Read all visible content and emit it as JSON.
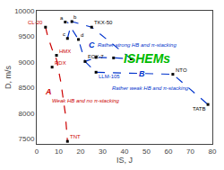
{
  "chart_data": {
    "type": "scatter",
    "xlabel": "IS, J",
    "ylabel": "D, m/s",
    "xlim": [
      0,
      80
    ],
    "ylim": [
      7400,
      10000
    ],
    "xticks": [
      0,
      10,
      20,
      30,
      40,
      50,
      60,
      70,
      80
    ],
    "yticks": [
      7500,
      8000,
      8500,
      9000,
      9500,
      10000
    ],
    "grid": false,
    "series": [
      {
        "type": "line",
        "line_style": "dashed",
        "color": "#cc0000",
        "x": [
          4,
          5,
          7,
          9,
          11,
          13,
          14
        ],
        "values": [
          9680,
          9500,
          9250,
          9050,
          8600,
          8000,
          7450
        ]
      },
      {
        "type": "line",
        "line_style": "dashed",
        "color": "#0033cc",
        "x": [
          14,
          16,
          25,
          43,
          36,
          27,
          22,
          19,
          14
        ],
        "values": [
          9460,
          9790,
          9680,
          9060,
          9080,
          9090,
          9010,
          9440,
          9780
        ]
      },
      {
        "type": "line",
        "line_style": "dashed",
        "color": "#0033cc",
        "x": [
          22,
          27,
          62,
          78
        ],
        "values": [
          9010,
          8800,
          8760,
          8170
        ]
      },
      {
        "type": "scatter",
        "marker": "square",
        "color": "#000000",
        "x": [
          4,
          13,
          16,
          25,
          14,
          19,
          9,
          7,
          22,
          27,
          62,
          78,
          14
        ],
        "values": [
          9680,
          9780,
          9790,
          9680,
          9460,
          9440,
          9130,
          8900,
          9010,
          8800,
          8760,
          8170,
          7450
        ],
        "labels": [
          "CL-20",
          "a",
          "b",
          "TKX-50",
          "c",
          "d",
          "HMX",
          "RDX",
          "FOX-7",
          "LLM-105",
          "NTO",
          "TATB",
          "TNT"
        ],
        "label_colors": [
          "#cc0000",
          "#000000",
          "#000000",
          "#000000",
          "#000000",
          "#000000",
          "#cc0000",
          "#cc0000",
          "#000000",
          "#0033cc",
          "#000000",
          "#000000",
          "#cc0000"
        ]
      },
      {
        "type": "scatter",
        "marker": "square",
        "color": "#000000",
        "x": [
          27,
          35,
          43
        ],
        "values": [
          9090,
          9080,
          9060
        ]
      }
    ],
    "annotations": [
      {
        "text": "ISHEMs",
        "x": 50,
        "y": 9150,
        "color": "#00bb00"
      },
      {
        "text": "A",
        "x": 5.5,
        "y": 8420,
        "color": "#cc0000"
      },
      {
        "text": "Weak HB and no π-stacking",
        "x": 6.5,
        "y": 8250,
        "color": "#cc0000"
      },
      {
        "text": "B",
        "x": 48,
        "y": 8660,
        "color": "#0033cc"
      },
      {
        "text": "Rather weak HB and π-stacking",
        "x": 34,
        "y": 8560,
        "color": "#0033cc"
      },
      {
        "text": "C",
        "x": 25,
        "y": 9340,
        "color": "#0033cc"
      },
      {
        "text": "Rather strong HB and π-stacking",
        "x": 27,
        "y": 9260,
        "color": "#0033cc"
      }
    ]
  }
}
